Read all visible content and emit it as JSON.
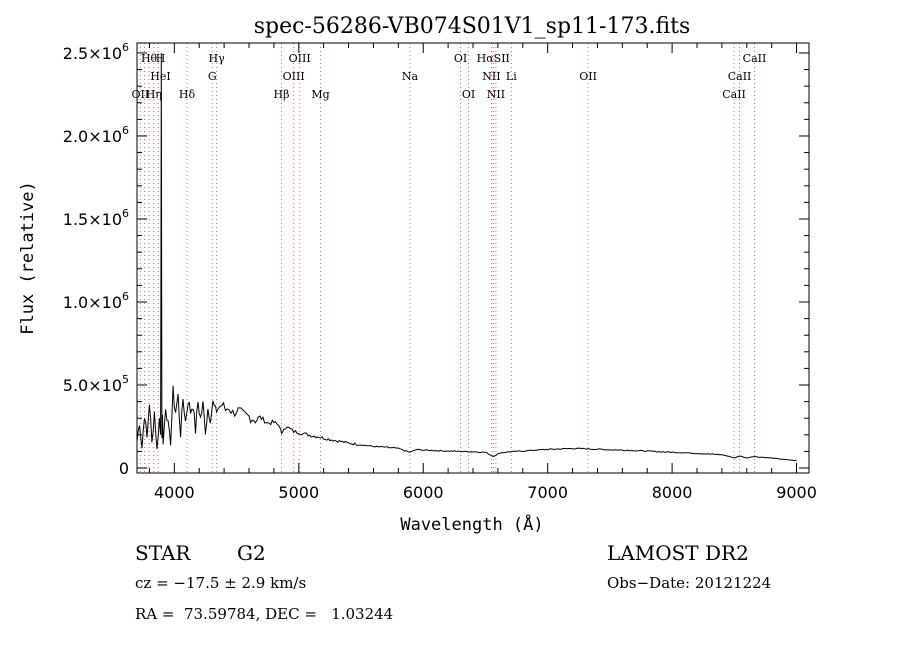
{
  "chart_data": {
    "type": "line",
    "title": "spec-56286-VB074S01V1_sp11-173.fits",
    "xlabel": "Wavelength (Å)",
    "ylabel": "Flux (relative)",
    "xlim": [
      3700,
      9100
    ],
    "ylim": [
      -30000,
      2560000
    ],
    "x_ticks": [
      {
        "value": 4000,
        "label": "4000"
      },
      {
        "value": 5000,
        "label": "5000"
      },
      {
        "value": 6000,
        "label": "6000"
      },
      {
        "value": 7000,
        "label": "7000"
      },
      {
        "value": 8000,
        "label": "8000"
      },
      {
        "value": 9000,
        "label": "9000"
      }
    ],
    "y_ticks": [
      {
        "value": 0,
        "label": "0",
        "exp": ""
      },
      {
        "value": 500000,
        "label": "5.0×10",
        "exp": "5"
      },
      {
        "value": 1000000,
        "label": "1.0×10",
        "exp": "6"
      },
      {
        "value": 1500000,
        "label": "1.5×10",
        "exp": "6"
      },
      {
        "value": 2000000,
        "label": "2.0×10",
        "exp": "6"
      },
      {
        "value": 2500000,
        "label": "2.5×10",
        "exp": "6"
      }
    ],
    "x_minor_step": 200,
    "y_minor_step": 100000,
    "series": [
      {
        "color": "#000000",
        "x": [
          3700,
          3720,
          3740,
          3760,
          3780,
          3800,
          3820,
          3840,
          3860,
          3880,
          3890,
          3895,
          3900,
          3905,
          3910,
          3930,
          3950,
          3970,
          3990,
          4010,
          4030,
          4050,
          4070,
          4090,
          4110,
          4130,
          4150,
          4170,
          4190,
          4210,
          4230,
          4250,
          4270,
          4290,
          4310,
          4330,
          4350,
          4380,
          4410,
          4440,
          4470,
          4500,
          4550,
          4600,
          4650,
          4700,
          4750,
          4800,
          4850,
          4861,
          4880,
          4920,
          4960,
          5000,
          5050,
          5100,
          5150,
          5200,
          5300,
          5400,
          5500,
          5600,
          5700,
          5800,
          5890,
          5950,
          6000,
          6100,
          6200,
          6300,
          6400,
          6500,
          6563,
          6620,
          6700,
          6800,
          6900,
          7000,
          7100,
          7200,
          7300,
          7400,
          7500,
          7600,
          7700,
          7800,
          7900,
          8000,
          8100,
          8200,
          8300,
          8400,
          8500,
          8550,
          8600,
          8650,
          8700,
          8800,
          8900,
          9000
        ],
        "y": [
          160000,
          280000,
          120000,
          330000,
          180000,
          400000,
          150000,
          340000,
          110000,
          300000,
          200000,
          2500000,
          180000,
          320000,
          140000,
          380000,
          260000,
          150000,
          450000,
          340000,
          430000,
          200000,
          420000,
          280000,
          410000,
          340000,
          390000,
          220000,
          400000,
          300000,
          380000,
          220000,
          360000,
          300000,
          390000,
          340000,
          360000,
          380000,
          350000,
          370000,
          330000,
          350000,
          320000,
          310000,
          290000,
          300000,
          270000,
          275000,
          250000,
          200000,
          245000,
          240000,
          220000,
          215000,
          205000,
          195000,
          190000,
          180000,
          165000,
          150000,
          140000,
          130000,
          125000,
          118000,
          95000,
          112000,
          108000,
          105000,
          102000,
          100000,
          98000,
          95000,
          70000,
          92000,
          98000,
          102000,
          108000,
          112000,
          115000,
          118000,
          116000,
          113000,
          110000,
          108000,
          105000,
          102000,
          98000,
          95000,
          92000,
          88000,
          84000,
          80000,
          62000,
          72000,
          60000,
          70000,
          66000,
          60000,
          52000,
          44000
        ]
      }
    ],
    "lines_top": [
      {
        "label": "Hθ",
        "x": 3797,
        "row": 0
      },
      {
        "label": "H",
        "x": 3889,
        "row": 0
      },
      {
        "label": "Hγ",
        "x": 4340,
        "row": 0
      },
      {
        "label": "OIII",
        "x": 5007,
        "row": 0
      },
      {
        "label": "OI",
        "x": 6300,
        "row": 0
      },
      {
        "label": "HαSII",
        "x": 6563,
        "row": 0
      },
      {
        "label": "CaII",
        "x": 8662,
        "row": 0
      },
      {
        "label": "HeI",
        "x": 3889,
        "row": 1
      },
      {
        "label": "G",
        "x": 4305,
        "row": 1
      },
      {
        "label": "OIII",
        "x": 4959,
        "row": 1
      },
      {
        "label": "Na",
        "x": 5893,
        "row": 1
      },
      {
        "label": "NII",
        "x": 6548,
        "row": 1
      },
      {
        "label": "Li",
        "x": 6708,
        "row": 1
      },
      {
        "label": "OII",
        "x": 7325,
        "row": 1
      },
      {
        "label": "CaII",
        "x": 8542,
        "row": 1
      },
      {
        "label": "OII",
        "x": 3727,
        "row": 2
      },
      {
        "label": "Hη",
        "x": 3835,
        "row": 2
      },
      {
        "label": "Hδ",
        "x": 4102,
        "row": 2
      },
      {
        "label": "Hβ",
        "x": 4861,
        "row": 2
      },
      {
        "label": "Mg",
        "x": 5175,
        "row": 2
      },
      {
        "label": "OI",
        "x": 6364,
        "row": 2
      },
      {
        "label": "NII",
        "x": 6584,
        "row": 2
      },
      {
        "label": "CaII",
        "x": 8498,
        "row": 2
      }
    ],
    "line_positions": [
      3727,
      3760,
      3797,
      3835,
      3870,
      4102,
      4305,
      4340,
      4861,
      4959,
      5007,
      5175,
      5893,
      6300,
      6364,
      6548,
      6563,
      6584,
      6708,
      7325,
      8498,
      8542,
      8662
    ]
  },
  "info": {
    "class_label": "STAR",
    "subclass": "G2",
    "survey": "LAMOST DR2",
    "redshift": "cz = −17.5 ± 2.9 km/s",
    "obs_date": "Obs−Date: 20121224",
    "coords": "RA =  73.59784, DEC =   1.03244"
  },
  "colors": {
    "line": "#000000",
    "marker_lines": "#d46a6a",
    "background": "#ffffff"
  }
}
